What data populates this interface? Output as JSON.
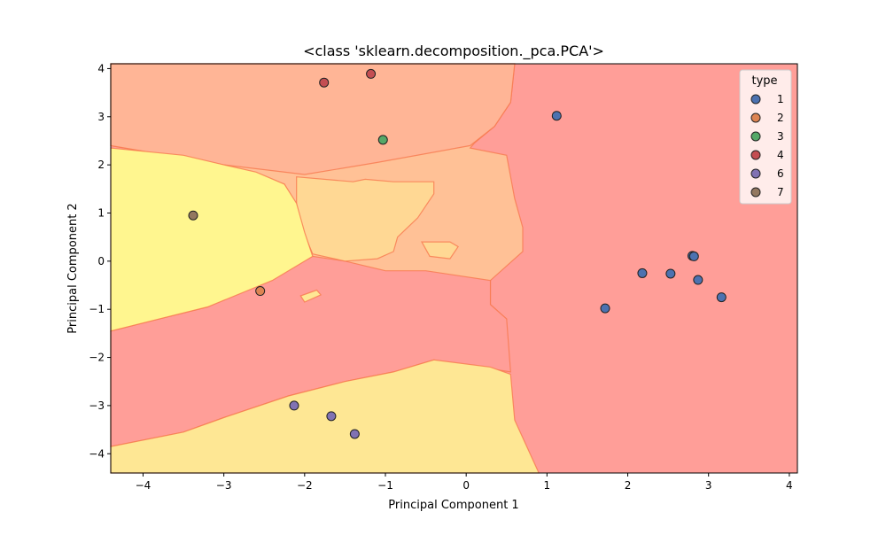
{
  "chart_data": {
    "type": "scatter",
    "title": "<class 'sklearn.decomposition._pca.PCA'>",
    "xlabel": "Principal Component 1",
    "ylabel": "Principal Component 2",
    "xlim": [
      -4.4,
      4.1
    ],
    "ylim": [
      -4.4,
      4.1
    ],
    "xticks": [
      -4,
      -3,
      -2,
      -1,
      0,
      1,
      2,
      3,
      4
    ],
    "yticks": [
      -4,
      -3,
      -2,
      -1,
      0,
      1,
      2,
      3,
      4
    ],
    "xtick_labels": [
      "−4",
      "−3",
      "−2",
      "−1",
      "0",
      "1",
      "2",
      "3",
      "4"
    ],
    "ytick_labels": [
      "−4",
      "−3",
      "−2",
      "−1",
      "0",
      "1",
      "2",
      "3",
      "4"
    ],
    "grid": false,
    "legend": {
      "title": "type",
      "placement": "top-right",
      "entries": [
        "1",
        "2",
        "3",
        "4",
        "6",
        "7"
      ]
    },
    "series": [
      {
        "name": "1",
        "color": "#4c72b0",
        "points": [
          [
            1.12,
            3.02
          ],
          [
            1.72,
            -0.98
          ],
          [
            2.18,
            -0.25
          ],
          [
            2.53,
            -0.26
          ],
          [
            2.8,
            0.11
          ],
          [
            2.82,
            0.1
          ],
          [
            2.87,
            -0.39
          ],
          [
            3.16,
            -0.75
          ]
        ]
      },
      {
        "name": "2",
        "color": "#dd8452",
        "points": [
          [
            -2.55,
            -0.62
          ]
        ]
      },
      {
        "name": "3",
        "color": "#55a868",
        "points": [
          [
            -1.03,
            2.52
          ]
        ]
      },
      {
        "name": "4",
        "color": "#c44e52",
        "points": [
          [
            -1.76,
            3.71
          ],
          [
            -1.18,
            3.89
          ]
        ]
      },
      {
        "name": "6",
        "color": "#8172b3",
        "points": [
          [
            -2.13,
            -3.0
          ],
          [
            -1.67,
            -3.22
          ],
          [
            -1.38,
            -3.59
          ]
        ]
      },
      {
        "name": "7",
        "color": "#937860",
        "points": [
          [
            -3.38,
            0.95
          ]
        ]
      }
    ],
    "decision_regions": {
      "colors": {
        "1": "#ff9e98",
        "2": "#ffc196",
        "3": "#ffd894",
        "6": "#fee794",
        "7": "#fff68f",
        "4": "#ffb596"
      },
      "boundary_color": "#f7794f"
    }
  }
}
